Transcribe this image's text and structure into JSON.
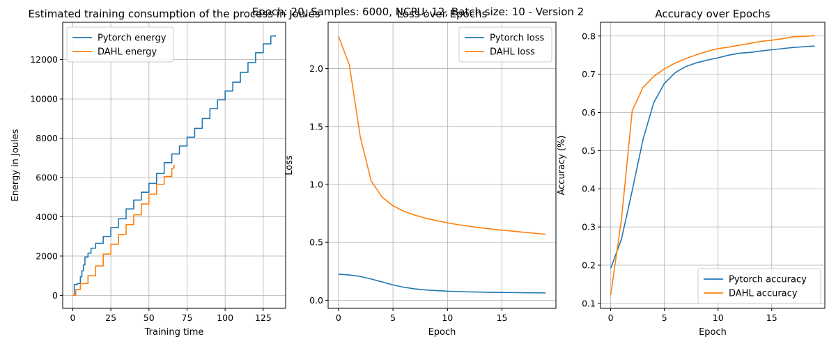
{
  "suptitle": "Epoch: 20, Samples: 6000, NCPU: 12, Batch size: 10 - Version 2",
  "colors": {
    "series1": "#1f77b4",
    "series2": "#ff7f0e",
    "grid": "#b0b0b0"
  },
  "chart_data": [
    {
      "type": "line",
      "title": "Estimated training consumption of the process in Joules",
      "xlabel": "Training time",
      "ylabel": "Energy in Joules",
      "xlim": [
        -6.6,
        139.7
      ],
      "ylim": [
        -660,
        13900
      ],
      "xticks": [
        0,
        25,
        50,
        75,
        100,
        125
      ],
      "yticks": [
        0,
        2000,
        4000,
        6000,
        8000,
        10000,
        12000
      ],
      "grid": true,
      "legend": "upper-left",
      "step": true,
      "series": [
        {
          "name": "Pytorch energy",
          "color": "#1f77b4",
          "x": [
            0,
            1,
            3,
            5,
            6,
            7,
            8,
            10,
            12,
            15,
            20,
            25,
            30,
            35,
            40,
            45,
            50,
            55,
            60,
            65,
            70,
            75,
            80,
            85,
            90,
            95,
            100,
            105,
            110,
            115,
            120,
            125,
            130,
            133
          ],
          "y": [
            0,
            550,
            600,
            950,
            1250,
            1550,
            1950,
            2150,
            2400,
            2650,
            3000,
            3450,
            3900,
            4400,
            4850,
            5250,
            5700,
            6200,
            6750,
            7200,
            7600,
            8050,
            8500,
            9000,
            9500,
            9950,
            10400,
            10850,
            11350,
            11850,
            12350,
            12800,
            13200,
            13250
          ]
        },
        {
          "name": "DAHL energy",
          "color": "#ff7f0e",
          "x": [
            0,
            2,
            5,
            10,
            15,
            20,
            25,
            30,
            35,
            40,
            45,
            50,
            55,
            60,
            65,
            66,
            66.5
          ],
          "y": [
            0,
            300,
            600,
            1000,
            1500,
            2100,
            2600,
            3100,
            3600,
            4100,
            4650,
            5150,
            5650,
            6050,
            6450,
            6500,
            6650
          ]
        }
      ]
    },
    {
      "type": "line",
      "title": "Loss over Epochs",
      "xlabel": "Epoch",
      "ylabel": "Loss",
      "xlim": [
        -0.95,
        19.95
      ],
      "ylim": [
        -0.07,
        2.4
      ],
      "xticks": [
        0,
        5,
        10,
        15
      ],
      "yticks": [
        0.0,
        0.5,
        1.0,
        1.5,
        2.0
      ],
      "ytick_labels": [
        "0.0",
        "0.5",
        "1.0",
        "1.5",
        "2.0"
      ],
      "grid": true,
      "legend": "upper-right",
      "x": [
        0,
        1,
        2,
        3,
        4,
        5,
        6,
        7,
        8,
        9,
        10,
        11,
        12,
        13,
        14,
        15,
        16,
        17,
        18,
        19
      ],
      "series": [
        {
          "name": "Pytorch loss",
          "color": "#1f77b4",
          "values": [
            0.225,
            0.218,
            0.205,
            0.183,
            0.158,
            0.132,
            0.112,
            0.098,
            0.089,
            0.083,
            0.078,
            0.075,
            0.072,
            0.07,
            0.068,
            0.067,
            0.066,
            0.065,
            0.064,
            0.063
          ]
        },
        {
          "name": "DAHL loss",
          "color": "#ff7f0e",
          "values": [
            2.28,
            2.03,
            1.41,
            1.03,
            0.89,
            0.815,
            0.768,
            0.735,
            0.708,
            0.687,
            0.668,
            0.652,
            0.638,
            0.626,
            0.615,
            0.605,
            0.596,
            0.587,
            0.578,
            0.57
          ]
        }
      ]
    },
    {
      "type": "line",
      "title": "Accuracy over Epochs",
      "xlabel": "Epoch",
      "ylabel": "Accuracy (%)",
      "xlim": [
        -0.95,
        19.95
      ],
      "ylim": [
        0.087,
        0.836
      ],
      "xticks": [
        0,
        5,
        10,
        15
      ],
      "yticks": [
        0.1,
        0.2,
        0.3,
        0.4,
        0.5,
        0.6,
        0.7,
        0.8
      ],
      "ytick_labels": [
        "0.1",
        "0.2",
        "0.3",
        "0.4",
        "0.5",
        "0.6",
        "0.7",
        "0.8"
      ],
      "grid": true,
      "legend": "lower-right",
      "x": [
        0,
        1,
        2,
        3,
        4,
        5,
        6,
        7,
        8,
        9,
        10,
        11,
        12,
        13,
        14,
        15,
        16,
        17,
        18,
        19
      ],
      "series": [
        {
          "name": "Pytorch accuracy",
          "color": "#1f77b4",
          "values": [
            0.192,
            0.268,
            0.395,
            0.528,
            0.625,
            0.676,
            0.704,
            0.72,
            0.73,
            0.737,
            0.743,
            0.75,
            0.755,
            0.757,
            0.761,
            0.764,
            0.767,
            0.77,
            0.772,
            0.774
          ]
        },
        {
          "name": "DAHL accuracy",
          "color": "#ff7f0e",
          "values": [
            0.122,
            0.32,
            0.604,
            0.665,
            0.694,
            0.714,
            0.729,
            0.741,
            0.751,
            0.76,
            0.767,
            0.771,
            0.776,
            0.781,
            0.786,
            0.789,
            0.793,
            0.798,
            0.799,
            0.801
          ]
        }
      ]
    }
  ]
}
